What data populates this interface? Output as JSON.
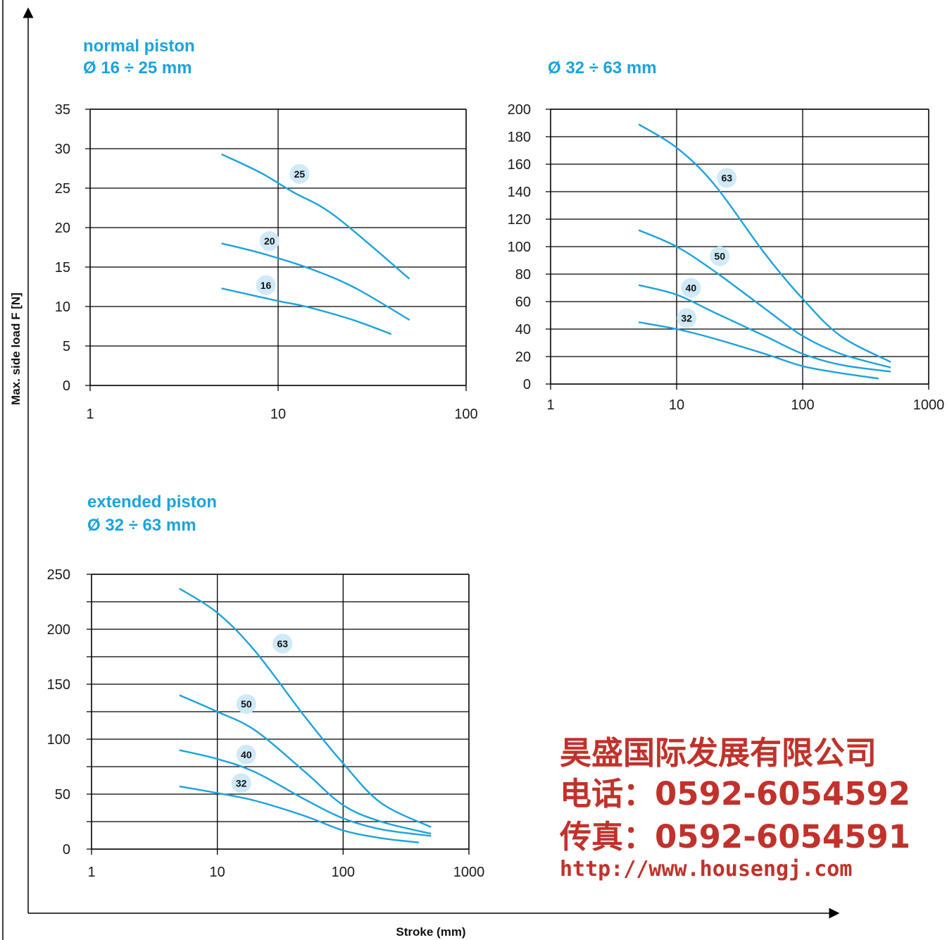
{
  "axes": {
    "ylabel": "Max. side load F [N]",
    "xlabel": "Stroke (mm)"
  },
  "watermark": {
    "line1": "昊盛国际发展有限公司",
    "line2": "电话：0592-6054592",
    "line3": "传真：0592-6054591",
    "line4": "http://www.housengj.com"
  },
  "colors": {
    "curve": "#1ca3dc",
    "badge": "#cfe9f7",
    "title": "#1ca3dc"
  },
  "chart_data": [
    {
      "type": "line",
      "title": "normal piston",
      "subtitle": "Ø 16 ÷ 25 mm",
      "xscale": "log",
      "xlim": [
        1,
        100
      ],
      "ylim": [
        0,
        35
      ],
      "xticks": [
        1,
        10,
        100
      ],
      "yticks": [
        0,
        5,
        10,
        15,
        20,
        25,
        30,
        35
      ],
      "grid": true,
      "series": [
        {
          "name": "25",
          "x": [
            5,
            8,
            12,
            20,
            50
          ],
          "y": [
            29.3,
            27,
            24.5,
            21.5,
            13.5
          ],
          "label_at": [
            13,
            26.8
          ]
        },
        {
          "name": "20",
          "x": [
            5,
            8,
            14,
            25,
            50
          ],
          "y": [
            18,
            16.8,
            15,
            12.5,
            8.3
          ],
          "label_at": [
            9,
            18.3
          ]
        },
        {
          "name": "16",
          "x": [
            5,
            10,
            14,
            25,
            40
          ],
          "y": [
            12.3,
            10.7,
            10,
            8.3,
            6.5
          ],
          "label_at": [
            8.6,
            12.7
          ]
        }
      ]
    },
    {
      "type": "line",
      "title": "",
      "subtitle": "Ø 32 ÷ 63 mm",
      "xscale": "log",
      "xlim": [
        1,
        1000
      ],
      "ylim": [
        0,
        200
      ],
      "xticks": [
        1,
        10,
        100,
        1000
      ],
      "yticks": [
        0,
        20,
        40,
        60,
        80,
        100,
        120,
        140,
        160,
        180,
        200
      ],
      "grid": true,
      "series": [
        {
          "name": "63",
          "x": [
            5,
            10,
            20,
            50,
            100,
            200,
            500
          ],
          "y": [
            189,
            172,
            145,
            95,
            62,
            35,
            16
          ],
          "label_at": [
            25,
            150
          ]
        },
        {
          "name": "50",
          "x": [
            5,
            10,
            20,
            50,
            100,
            200,
            500
          ],
          "y": [
            112,
            100,
            82,
            55,
            35,
            22,
            12
          ],
          "label_at": [
            22,
            93
          ]
        },
        {
          "name": "40",
          "x": [
            5,
            10,
            20,
            50,
            100,
            200,
            500
          ],
          "y": [
            72,
            65,
            52,
            35,
            22,
            14,
            9
          ],
          "label_at": [
            13,
            70
          ]
        },
        {
          "name": "32",
          "x": [
            5,
            10,
            20,
            50,
            100,
            200,
            400
          ],
          "y": [
            45,
            40,
            33,
            22,
            13,
            8,
            4
          ],
          "label_at": [
            12,
            48
          ]
        }
      ]
    },
    {
      "type": "line",
      "title": "extended piston",
      "subtitle": "Ø 32 ÷ 63 mm",
      "xscale": "log",
      "xlim": [
        1,
        1000
      ],
      "ylim": [
        0,
        250
      ],
      "xticks": [
        1,
        10,
        100,
        1000
      ],
      "yticks": [
        0,
        50,
        100,
        150,
        200,
        250
      ],
      "grid": true,
      "series": [
        {
          "name": "63",
          "x": [
            5,
            10,
            20,
            50,
            100,
            200,
            500
          ],
          "y": [
            237,
            215,
            180,
            120,
            78,
            42,
            20
          ],
          "label_at": [
            33,
            187
          ]
        },
        {
          "name": "50",
          "x": [
            5,
            10,
            20,
            50,
            100,
            200,
            500
          ],
          "y": [
            140,
            125,
            108,
            70,
            40,
            25,
            14
          ],
          "label_at": [
            17,
            132
          ]
        },
        {
          "name": "40",
          "x": [
            5,
            10,
            20,
            50,
            100,
            200,
            500
          ],
          "y": [
            90,
            82,
            70,
            45,
            28,
            18,
            12
          ],
          "label_at": [
            17,
            86
          ]
        },
        {
          "name": "32",
          "x": [
            5,
            10,
            20,
            50,
            100,
            200,
            400
          ],
          "y": [
            57,
            51,
            44,
            30,
            17,
            10,
            6
          ],
          "label_at": [
            15.5,
            60
          ]
        }
      ]
    }
  ]
}
